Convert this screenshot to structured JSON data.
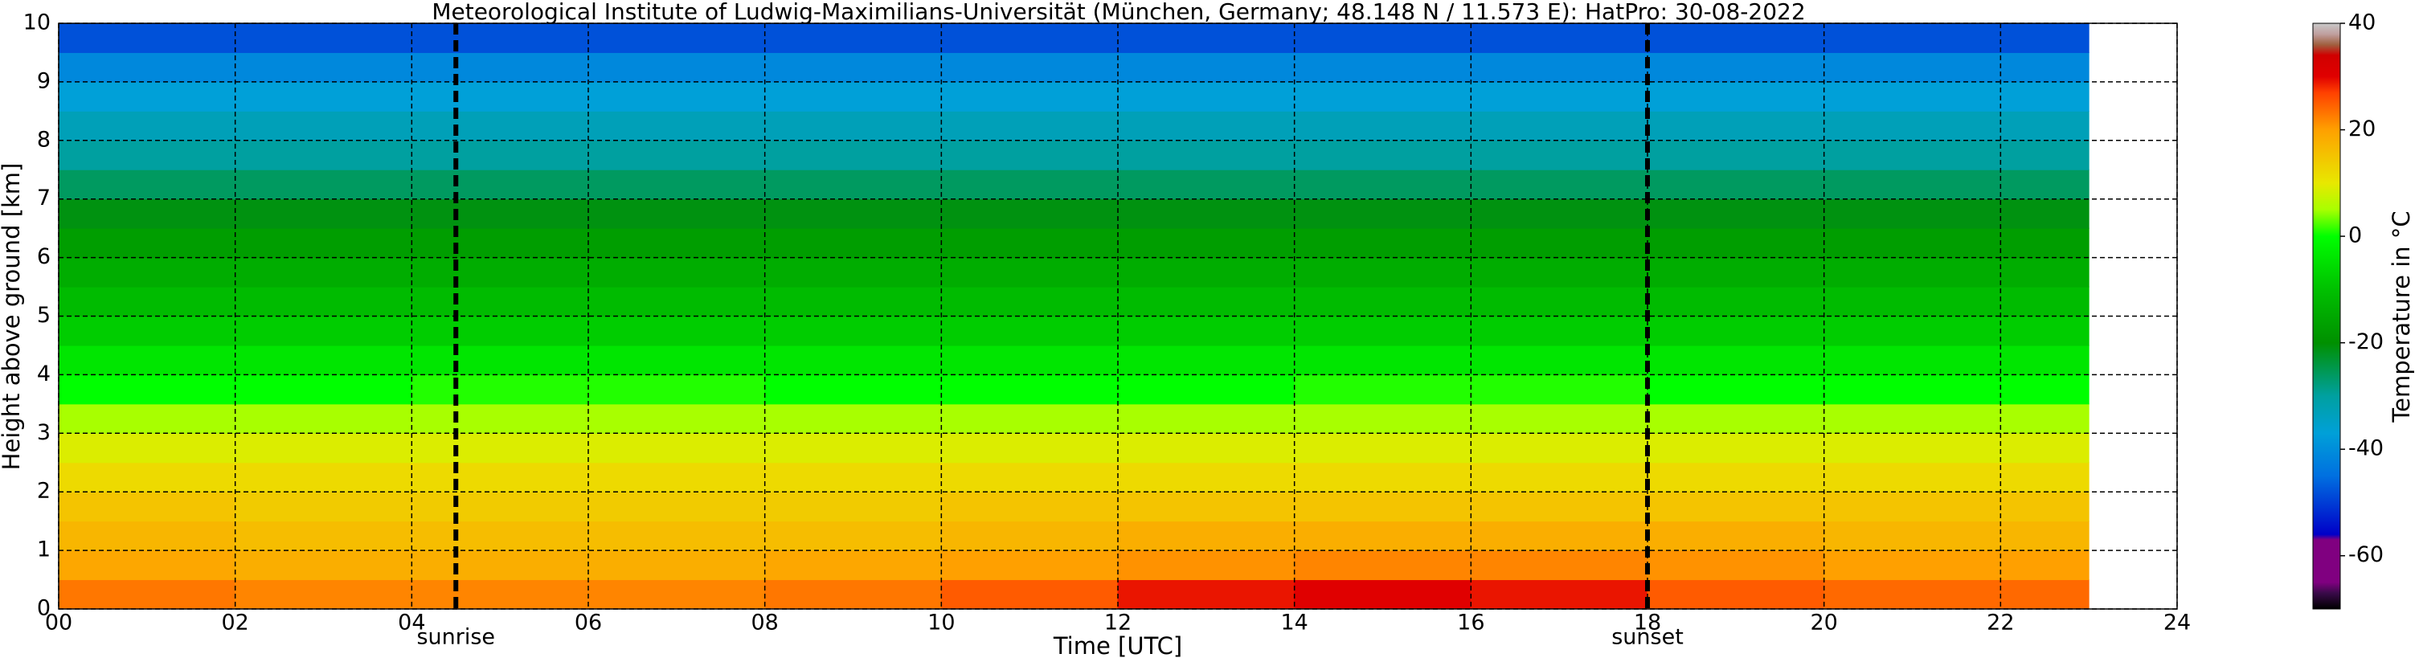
{
  "chart_data": {
    "type": "heatmap",
    "title": "Meteorological Institute of Ludwig-Maximilians-Universität (München, Germany; 48.148 N / 11.573 E):    HatPro: 30-08-2022",
    "x_label": "Time [UTC]",
    "y_label": "Height above ground [km]",
    "colorbar_label": "Temperature in °C",
    "x_bins": [
      0,
      2,
      4,
      6,
      8,
      10,
      12,
      14,
      16,
      18,
      20,
      22,
      23
    ],
    "y_bins": [
      0,
      0.5,
      1,
      1.5,
      2,
      2.5,
      3,
      3.5,
      4,
      4.5,
      5,
      5.5,
      6,
      6.5,
      7,
      7.5,
      8,
      8.5,
      9,
      9.5,
      10
    ],
    "values": [
      [
        23,
        22,
        22,
        22,
        23,
        25,
        29,
        30,
        29,
        25,
        24,
        24
      ],
      [
        19,
        18,
        18,
        18,
        19,
        20,
        21,
        22,
        22,
        21,
        20,
        20
      ],
      [
        17,
        16,
        16,
        16,
        16,
        17,
        18,
        18,
        18,
        18,
        17,
        17
      ],
      [
        15,
        14,
        14,
        14,
        14,
        15,
        15,
        15,
        15,
        15,
        15,
        15
      ],
      [
        12,
        12,
        12,
        12,
        12,
        12,
        12,
        12,
        12,
        12,
        12,
        12
      ],
      [
        9,
        9,
        9,
        9,
        9,
        9,
        9,
        9,
        9,
        9,
        9,
        9
      ],
      [
        5,
        5,
        5,
        5,
        5,
        5,
        5,
        5,
        5,
        5,
        5,
        5
      ],
      [
        0,
        0,
        1,
        1,
        0,
        0,
        0,
        1,
        1,
        0,
        0,
        0
      ],
      [
        -4,
        -4,
        -4,
        -4,
        -4,
        -4,
        -4,
        -4,
        -4,
        -4,
        -4,
        -4
      ],
      [
        -8,
        -8,
        -8,
        -8,
        -8,
        -8,
        -8,
        -8,
        -8,
        -8,
        -8,
        -8
      ],
      [
        -11,
        -11,
        -11,
        -11,
        -11,
        -11,
        -11,
        -11,
        -11,
        -11,
        -11,
        -11
      ],
      [
        -14,
        -14,
        -14,
        -14,
        -14,
        -14,
        -14,
        -14,
        -14,
        -14,
        -14,
        -14
      ],
      [
        -17,
        -17,
        -17,
        -17,
        -17,
        -17,
        -17,
        -17,
        -17,
        -17,
        -17,
        -17
      ],
      [
        -21,
        -21,
        -21,
        -21,
        -21,
        -21,
        -21,
        -21,
        -21,
        -21,
        -21,
        -21
      ],
      [
        -26,
        -26,
        -26,
        -26,
        -26,
        -26,
        -26,
        -26,
        -26,
        -26,
        -26,
        -26
      ],
      [
        -30,
        -30,
        -30,
        -30,
        -30,
        -30,
        -30,
        -30,
        -30,
        -30,
        -30,
        -30
      ],
      [
        -33,
        -33,
        -33,
        -33,
        -33,
        -33,
        -33,
        -33,
        -33,
        -33,
        -33,
        -33
      ],
      [
        -37,
        -37,
        -37,
        -37,
        -37,
        -37,
        -37,
        -37,
        -37,
        -37,
        -37,
        -37
      ],
      [
        -41,
        -41,
        -41,
        -41,
        -41,
        -41,
        -41,
        -41,
        -41,
        -41,
        -41,
        -41
      ],
      [
        -48,
        -48,
        -48,
        -48,
        -48,
        -48,
        -48,
        -48,
        -48,
        -48,
        -48,
        -48
      ]
    ],
    "xlim": [
      0,
      24
    ],
    "xticks": [
      {
        "value": 0,
        "label": "00"
      },
      {
        "value": 2,
        "label": "02"
      },
      {
        "value": 4,
        "label": "04"
      },
      {
        "value": 6,
        "label": "06"
      },
      {
        "value": 8,
        "label": "08"
      },
      10,
      12,
      14,
      16,
      18,
      20,
      22,
      24
    ],
    "ylim": [
      0,
      10
    ],
    "yticks": [
      0,
      1,
      2,
      3,
      4,
      5,
      6,
      7,
      8,
      9,
      10
    ],
    "clim": [
      -70,
      40
    ],
    "cticks": [
      -60,
      -40,
      -20,
      0,
      20,
      40
    ],
    "colorscale": [
      [
        -70,
        "#000000"
      ],
      [
        -67,
        "#3a0a4a"
      ],
      [
        -65,
        "#800080"
      ],
      [
        -57,
        "#800080"
      ],
      [
        -56,
        "#0000c8"
      ],
      [
        -45,
        "#0070e0"
      ],
      [
        -37,
        "#00a0d8"
      ],
      [
        -30,
        "#00a0a0"
      ],
      [
        -20,
        "#009000"
      ],
      [
        -10,
        "#00c000"
      ],
      [
        0,
        "#00ff00"
      ],
      [
        5,
        "#a8ff00"
      ],
      [
        10,
        "#e8e800"
      ],
      [
        20,
        "#ffa000"
      ],
      [
        27,
        "#ff4000"
      ],
      [
        30,
        "#e00000"
      ],
      [
        34,
        "#d00000"
      ],
      [
        36,
        "#a06040"
      ],
      [
        38,
        "#c0a0a0"
      ],
      [
        40,
        "#c8c8c8"
      ]
    ],
    "grid": true,
    "annotations": [
      {
        "x": 4.5,
        "label": "sunrise"
      },
      {
        "x": 18,
        "label": "sunset"
      }
    ]
  }
}
